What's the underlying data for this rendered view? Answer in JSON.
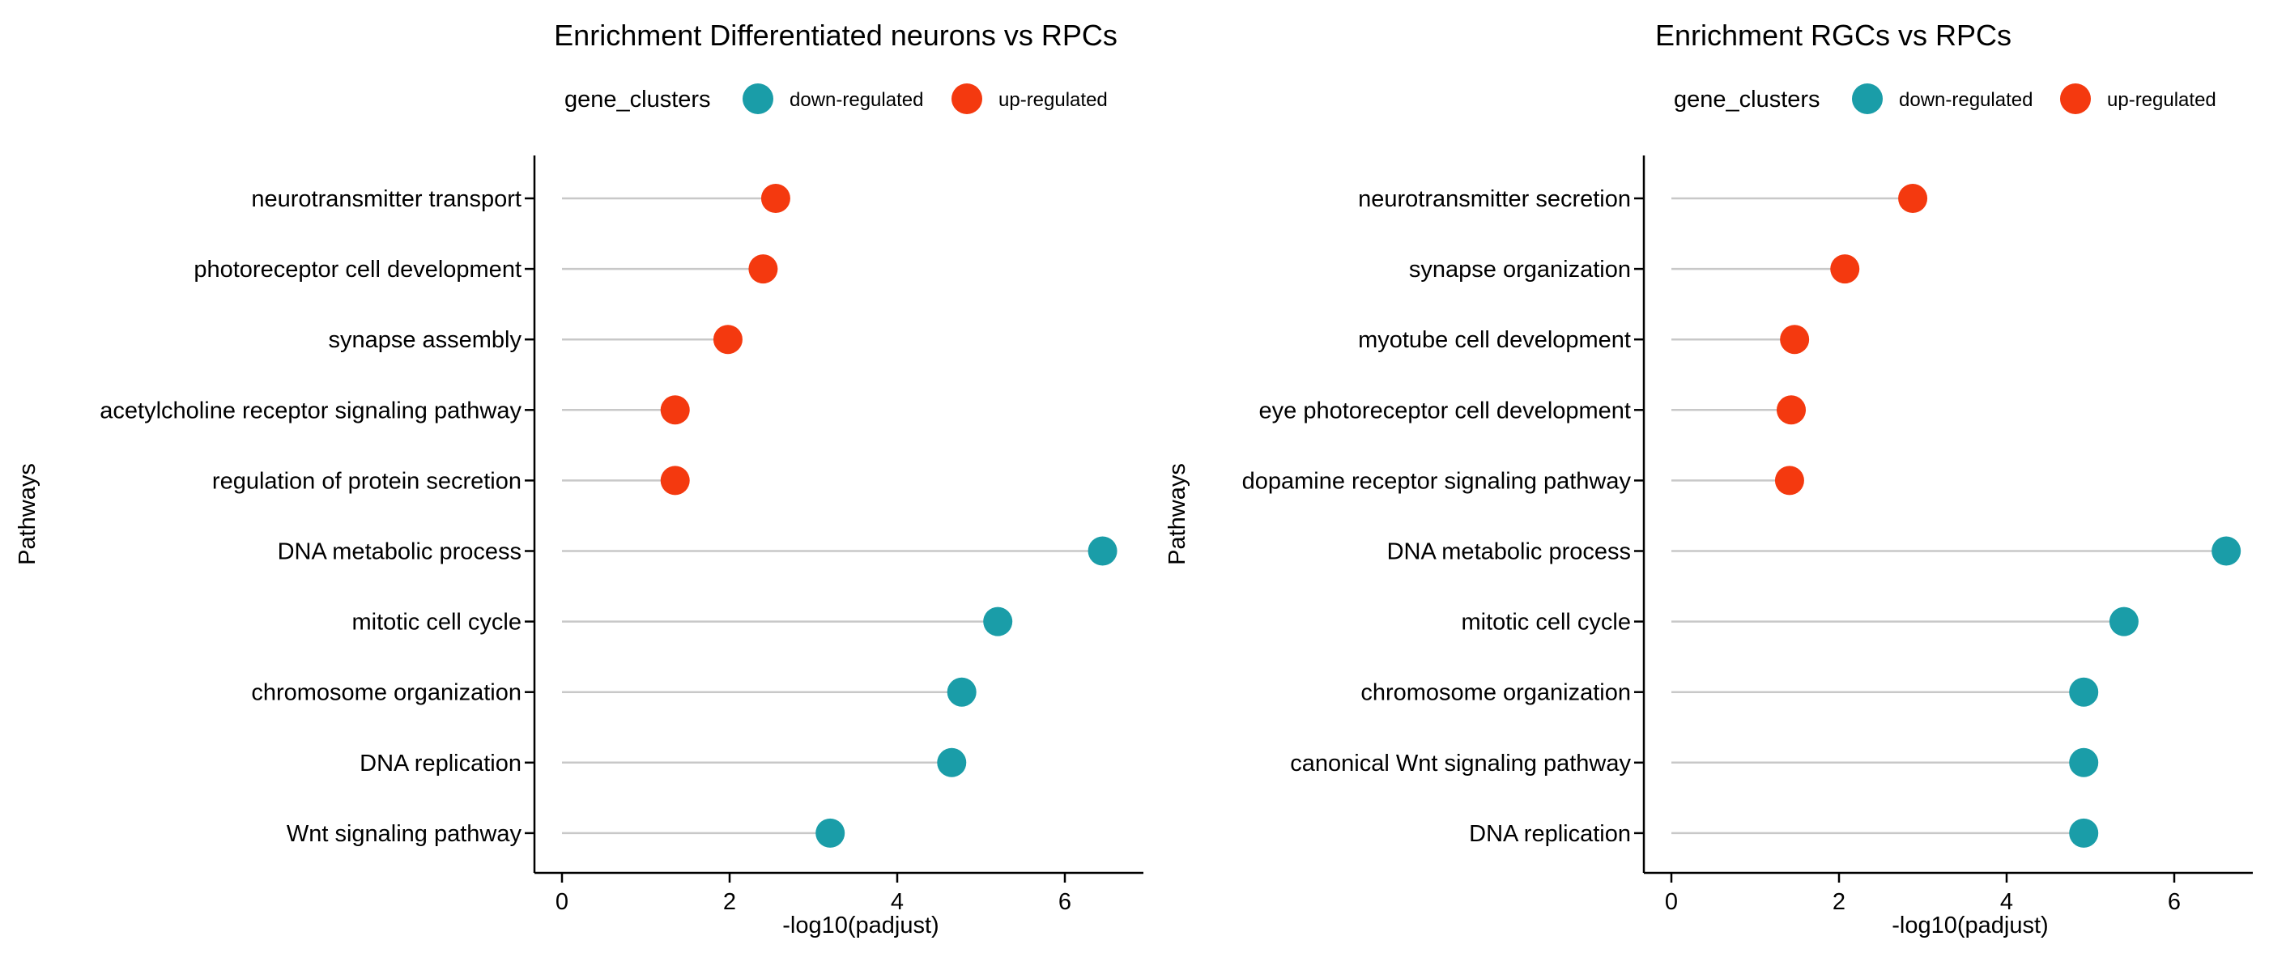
{
  "chart_data": [
    {
      "type": "lollipop",
      "title": "Enrichment Differentiated neurons vs RPCs",
      "xlabel": "-log10(padjust)",
      "ylabel": "Pathways",
      "xlim": [
        0,
        6.85
      ],
      "xticks": [
        0,
        2,
        4,
        6
      ],
      "grid": false,
      "legend": {
        "title": "gene_clusters",
        "position": "top",
        "entries": [
          {
            "label": "down-regulated",
            "color": "#1A9DA8"
          },
          {
            "label": "up-regulated",
            "color": "#F4390F"
          }
        ]
      },
      "categories": [
        "neurotransmitter transport",
        "photoreceptor cell development",
        "synapse assembly",
        "acetylcholine receptor signaling pathway",
        "regulation of protein secretion",
        "DNA metabolic process",
        "mitotic cell cycle",
        "chromosome organization",
        "DNA replication",
        "Wnt signaling pathway"
      ],
      "values": [
        2.55,
        2.4,
        1.98,
        1.35,
        1.35,
        6.45,
        5.2,
        4.77,
        4.65,
        3.2
      ],
      "groups": [
        "up-regulated",
        "up-regulated",
        "up-regulated",
        "up-regulated",
        "up-regulated",
        "down-regulated",
        "down-regulated",
        "down-regulated",
        "down-regulated",
        "down-regulated"
      ]
    },
    {
      "type": "lollipop",
      "title": "Enrichment RGCs vs RPCs",
      "xlabel": "-log10(padjust)",
      "ylabel": "Pathways",
      "xlim": [
        0,
        6.85
      ],
      "xticks": [
        0,
        2,
        4,
        6
      ],
      "grid": false,
      "legend": {
        "title": "gene_clusters",
        "position": "top",
        "entries": [
          {
            "label": "down-regulated",
            "color": "#1A9DA8"
          },
          {
            "label": "up-regulated",
            "color": "#F4390F"
          }
        ]
      },
      "categories": [
        "neurotransmitter secretion",
        "synapse organization",
        "myotube cell development",
        "eye photoreceptor cell development",
        "dopamine receptor signaling pathway",
        "DNA metabolic process",
        "mitotic cell cycle",
        "chromosome organization",
        "canonical Wnt signaling pathway",
        "DNA replication"
      ],
      "values": [
        2.88,
        2.07,
        1.47,
        1.43,
        1.41,
        6.62,
        5.4,
        4.92,
        4.92,
        4.92
      ],
      "groups": [
        "up-regulated",
        "up-regulated",
        "up-regulated",
        "up-regulated",
        "up-regulated",
        "down-regulated",
        "down-regulated",
        "down-regulated",
        "down-regulated",
        "down-regulated"
      ]
    }
  ]
}
